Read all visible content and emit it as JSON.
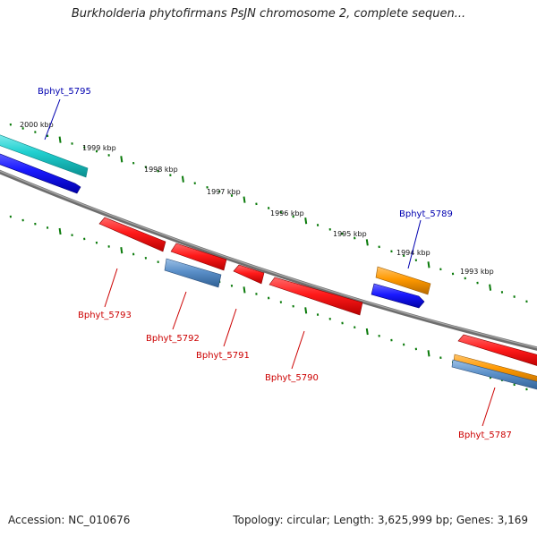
{
  "header": {
    "title": "Burkholderia phytofirmans PsJN chromosome 2, complete sequen..."
  },
  "footer": {
    "accession": "Accession: NC_010676",
    "summary": "Topology: circular; Length: 3,625,999 bp; Genes: 3,169"
  },
  "colors": {
    "backbone": "#7a7a7a",
    "ruler_ticks": "#0a7a0a",
    "forward_label": "#0000b0",
    "reverse_label": "#cc0000",
    "gene_red": "#ff1a1a",
    "gene_blue": "#1a1aff",
    "gene_cyan": "#20d0d0",
    "gene_orange": "#ff9900",
    "gene_steel": "#5a8fc8"
  },
  "ruler": {
    "labels": [
      "2000 kbp",
      "1999 kbp",
      "1998 kbp",
      "1997 kbp",
      "1996 kbp",
      "1995 kbp",
      "1994 kbp",
      "1993 kbp"
    ]
  },
  "genes": {
    "labels": [
      "Bphyt_5795",
      "Bphyt_5789",
      "Bphyt_5793",
      "Bphyt_5792",
      "Bphyt_5791",
      "Bphyt_5790",
      "Bphyt_5787"
    ]
  }
}
